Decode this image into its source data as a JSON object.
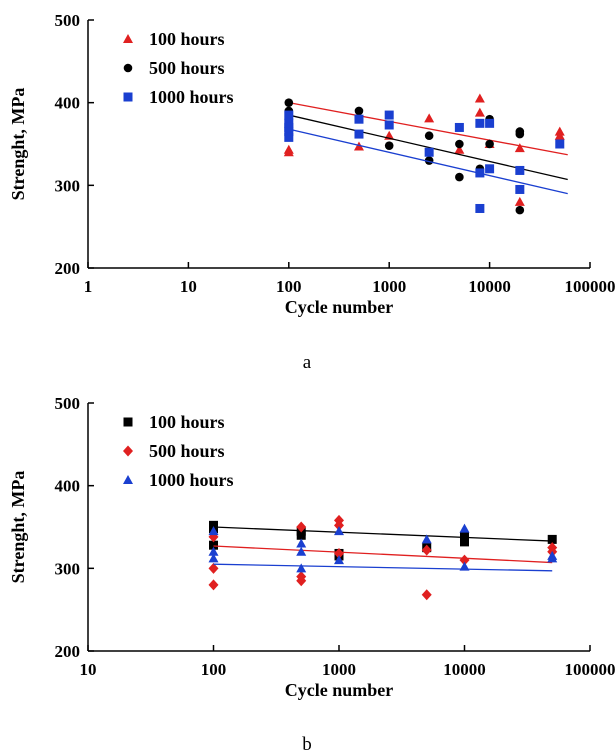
{
  "chart_data": [
    {
      "type": "scatter",
      "panel_label": "a",
      "xlabel": "Cycle number",
      "ylabel": "Strenght, MPa",
      "x_scale": "log",
      "xlim": [
        1,
        100000
      ],
      "ylim": [
        200,
        500
      ],
      "x_ticks": [
        "1",
        "10",
        "100",
        "1000",
        "10000",
        "100000"
      ],
      "y_ticks": [
        "200",
        "300",
        "400",
        "500"
      ],
      "grid": false,
      "legend_position": "top-left",
      "series": [
        {
          "name": "100 hours",
          "marker": "triangle",
          "color": "#e02020",
          "points": [
            [
              100,
              340
            ],
            [
              100,
              343
            ],
            [
              500,
              347
            ],
            [
              1000,
              360
            ],
            [
              2500,
              381
            ],
            [
              5000,
              343
            ],
            [
              8000,
              405
            ],
            [
              8000,
              388
            ],
            [
              10000,
              350
            ],
            [
              20000,
              280
            ],
            [
              20000,
              345
            ],
            [
              50000,
              365
            ],
            [
              50000,
              360
            ]
          ],
          "trend": [
            [
              100,
              400
            ],
            [
              60000,
              337
            ]
          ]
        },
        {
          "name": "500 hours",
          "marker": "circle",
          "color": "#000000",
          "points": [
            [
              100,
              400
            ],
            [
              100,
              390
            ],
            [
              500,
              390
            ],
            [
              1000,
              348
            ],
            [
              2500,
              360
            ],
            [
              2500,
              330
            ],
            [
              5000,
              310
            ],
            [
              5000,
              350
            ],
            [
              8000,
              320
            ],
            [
              10000,
              380
            ],
            [
              10000,
              350
            ],
            [
              20000,
              270
            ],
            [
              20000,
              362
            ],
            [
              20000,
              365
            ]
          ],
          "trend": [
            [
              100,
              385
            ],
            [
              60000,
              307
            ]
          ]
        },
        {
          "name": "1000 hours",
          "marker": "square",
          "color": "#1a3fd0",
          "points": [
            [
              100,
              385
            ],
            [
              100,
              375
            ],
            [
              100,
              370
            ],
            [
              100,
              365
            ],
            [
              100,
              358
            ],
            [
              500,
              380
            ],
            [
              500,
              362
            ],
            [
              1000,
              385
            ],
            [
              1000,
              373
            ],
            [
              2500,
              340
            ],
            [
              5000,
              370
            ],
            [
              8000,
              272
            ],
            [
              8000,
              315
            ],
            [
              8000,
              375
            ],
            [
              10000,
              375
            ],
            [
              10000,
              320
            ],
            [
              20000,
              295
            ],
            [
              20000,
              318
            ],
            [
              50000,
              350
            ]
          ],
          "trend": [
            [
              100,
              368
            ],
            [
              60000,
              290
            ]
          ]
        }
      ]
    },
    {
      "type": "scatter",
      "panel_label": "b",
      "xlabel": "Cycle number",
      "ylabel": "Strenght, MPa",
      "x_scale": "log",
      "xlim": [
        10,
        100000
      ],
      "ylim": [
        200,
        500
      ],
      "x_ticks": [
        "10",
        "100",
        "1000",
        "10000",
        "100000"
      ],
      "y_ticks": [
        "200",
        "300",
        "400",
        "500"
      ],
      "grid": false,
      "legend_position": "top-left",
      "series": [
        {
          "name": "100 hours",
          "marker": "square",
          "color": "#000000",
          "points": [
            [
              100,
              352
            ],
            [
              100,
              348
            ],
            [
              100,
              328
            ],
            [
              500,
              345
            ],
            [
              500,
              340
            ],
            [
              1000,
              318
            ],
            [
              1000,
              315
            ],
            [
              5000,
              325
            ],
            [
              10000,
              338
            ],
            [
              10000,
              332
            ],
            [
              50000,
              335
            ]
          ],
          "trend": [
            [
              100,
              350
            ],
            [
              50000,
              333
            ]
          ]
        },
        {
          "name": "500 hours",
          "marker": "diamond",
          "color": "#e02020",
          "points": [
            [
              100,
              338
            ],
            [
              100,
              300
            ],
            [
              100,
              280
            ],
            [
              500,
              350
            ],
            [
              500,
              290
            ],
            [
              500,
              285
            ],
            [
              1000,
              358
            ],
            [
              1000,
              352
            ],
            [
              1000,
              318
            ],
            [
              5000,
              268
            ],
            [
              5000,
              322
            ],
            [
              10000,
              310
            ],
            [
              50000,
              325
            ],
            [
              50000,
              320
            ]
          ],
          "trend": [
            [
              100,
              327
            ],
            [
              50000,
              307
            ]
          ]
        },
        {
          "name": "1000 hours",
          "marker": "triangle",
          "color": "#1a3fd0",
          "points": [
            [
              100,
              345
            ],
            [
              100,
              320
            ],
            [
              100,
              312
            ],
            [
              500,
              330
            ],
            [
              500,
              320
            ],
            [
              500,
              300
            ],
            [
              1000,
              345
            ],
            [
              1000,
              310
            ],
            [
              5000,
              335
            ],
            [
              10000,
              348
            ],
            [
              10000,
              302
            ],
            [
              50000,
              315
            ],
            [
              50000,
              312
            ]
          ],
          "trend": [
            [
              100,
              305
            ],
            [
              50000,
              297
            ]
          ]
        }
      ]
    }
  ]
}
